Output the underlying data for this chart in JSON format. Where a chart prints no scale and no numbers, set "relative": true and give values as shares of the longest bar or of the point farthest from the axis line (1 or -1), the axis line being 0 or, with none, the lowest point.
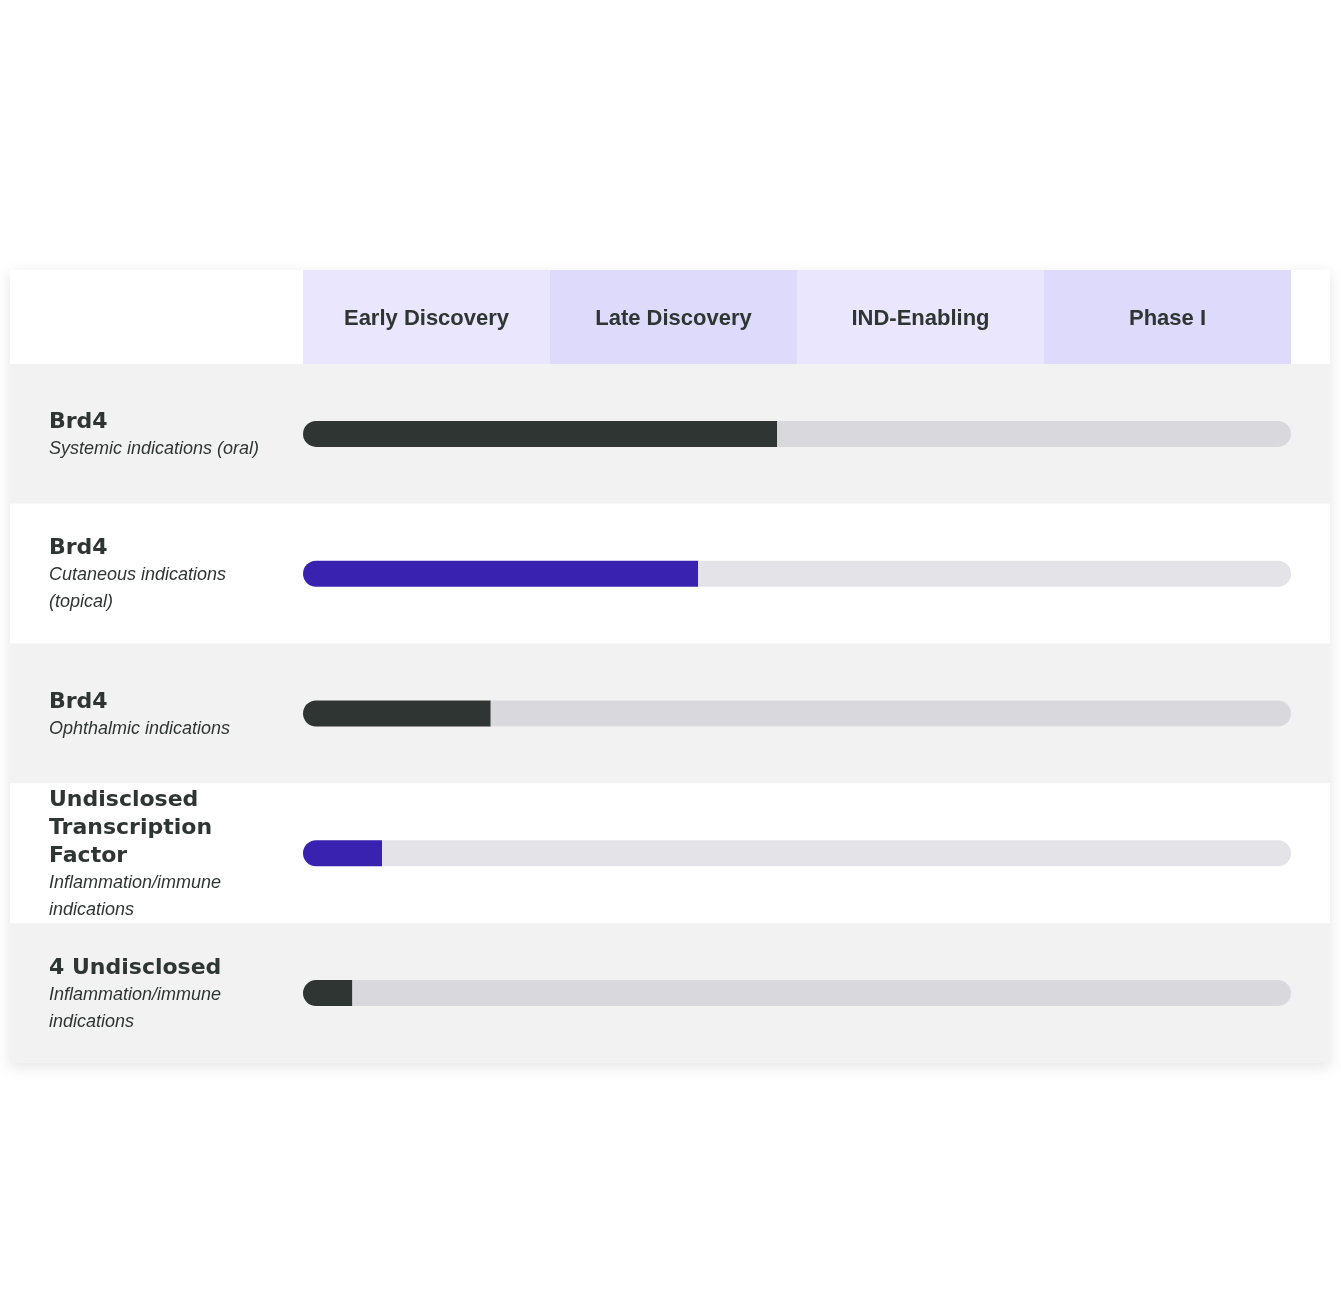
{
  "chart_data": {
    "type": "bar",
    "orientation": "horizontal",
    "stacked": true,
    "relative": true,
    "categories": [
      "Brd4\nSystemic indications (oral)",
      "Brd4\nCutaneous indications (topical)",
      "Brd4\nOphthalmic indications",
      "Undisclosed Transcription Factor\nInflammation/immune indications",
      "4 Undisclosed\nInflammation/immune indications"
    ],
    "series": [
      {
        "values": [
          0.48,
          0.4,
          0.19,
          0.08,
          0.05
        ],
        "colors": [
          "#2f3532",
          "#3a22b0",
          "#2f3532",
          "#3a22b0",
          "#2f3532"
        ]
      },
      {
        "values": [
          0.52,
          0.6,
          0.81,
          0.92,
          0.95
        ],
        "colors": [
          "#d9d8dd",
          "#e3e3e8",
          "#d9d8dd",
          "#e3e3e8",
          "#d9d8dd"
        ]
      }
    ],
    "annotations": [
      "Early Discovery",
      "Late Discovery",
      "IND-Enabling",
      "Phase I"
    ]
  }
}
